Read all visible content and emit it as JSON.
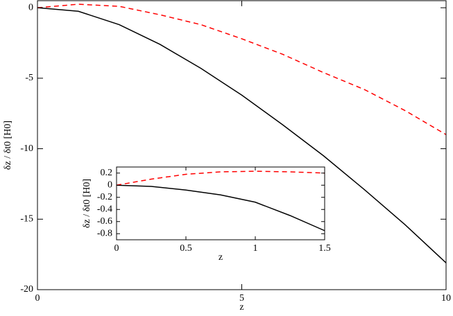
{
  "chart_data": [
    {
      "type": "line",
      "xlabel": "z",
      "ylabel": "δz / δt0 [H0]",
      "x": [
        0,
        1,
        2,
        3,
        4,
        5,
        6,
        7,
        8,
        9,
        10
      ],
      "series": [
        {
          "color": "#000000",
          "style": "solid",
          "values": [
            0,
            -0.25,
            -1.2,
            -2.6,
            -4.3,
            -6.2,
            -8.3,
            -10.5,
            -12.9,
            -15.4,
            -18.1
          ]
        },
        {
          "color": "#ff0000",
          "style": "dashed",
          "values": [
            0,
            0.25,
            0.1,
            -0.5,
            -1.2,
            -2.2,
            -3.3,
            -4.6,
            -5.8,
            -7.3,
            -9.0
          ]
        }
      ],
      "xlim": [
        0,
        10
      ],
      "xticks": [
        0,
        5,
        10
      ],
      "ylim": [
        -20,
        0.5
      ],
      "yticks": [
        -20,
        -15,
        -10,
        -5,
        0
      ]
    },
    {
      "type": "line",
      "xlabel": "z",
      "ylabel": "δz / δt0 [H0]",
      "x": [
        0,
        0.25,
        0.5,
        0.75,
        1,
        1.25,
        1.5
      ],
      "series": [
        {
          "color": "#000000",
          "style": "solid",
          "values": [
            0,
            -0.02,
            -0.08,
            -0.16,
            -0.28,
            -0.5,
            -0.75
          ]
        },
        {
          "color": "#ff0000",
          "style": "dashed",
          "values": [
            0,
            0.1,
            0.18,
            0.22,
            0.23,
            0.22,
            0.2
          ]
        }
      ],
      "xlim": [
        0,
        1.5
      ],
      "xticks": [
        0,
        0.5,
        1,
        1.5
      ],
      "ylim": [
        -0.9,
        0.3
      ],
      "yticks": [
        -0.8,
        -0.6,
        -0.4,
        -0.2,
        0,
        0.2
      ]
    }
  ]
}
